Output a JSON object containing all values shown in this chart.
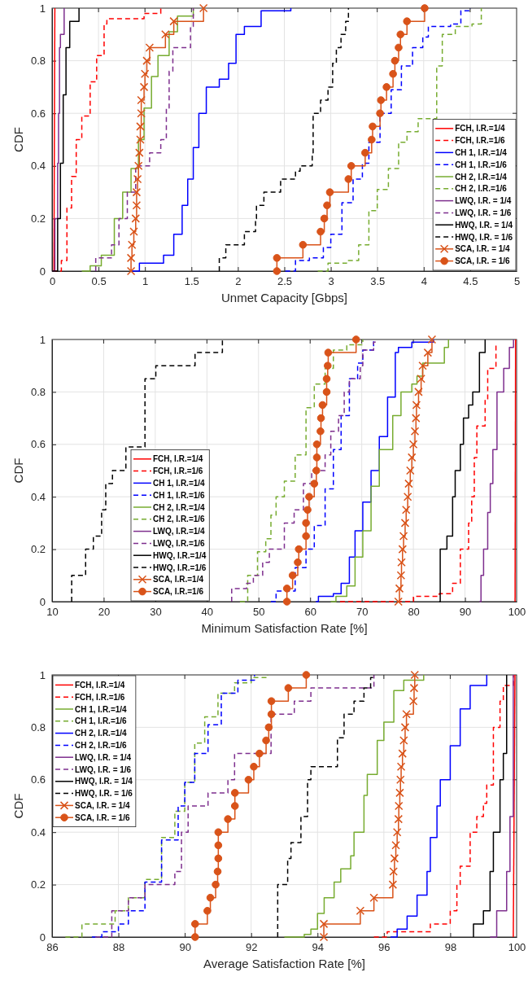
{
  "chart_data": [
    {
      "type": "step",
      "xlabel": "Unmet Capacity [Gbps]",
      "ylabel": "CDF",
      "xlim": [
        0,
        5
      ],
      "ylim": [
        0,
        1
      ],
      "xticks": [
        0,
        0.5,
        1,
        1.5,
        2,
        2.5,
        3,
        3.5,
        4,
        4.5,
        5
      ],
      "yticks": [
        0,
        0.2,
        0.4,
        0.6,
        0.8,
        1
      ],
      "grid": true,
      "legend": "bottom right",
      "series": [
        {
          "name": "FCH, I.R.=1/4",
          "type": "line",
          "color": "#ff0000",
          "line_style": "solid",
          "x": [
            0.02,
            0.03
          ],
          "values": [
            0,
            1
          ]
        },
        {
          "name": "FCH, I.R.=1/6",
          "color": "#ff0000",
          "line_style": "dashed",
          "x": [
            0,
            0.1,
            0.16,
            0.21,
            0.26,
            0.32,
            0.41,
            0.48,
            0.56,
            0.59,
            0.99,
            1.17
          ],
          "values": [
            0,
            0.04,
            0.24,
            0.36,
            0.5,
            0.59,
            0.72,
            0.82,
            0.94,
            0.96,
            0.98,
            1
          ]
        },
        {
          "name": "CH 1, I.R.=1/4",
          "color": "#0000ff",
          "line_style": "solid",
          "x": [
            0.85,
            0.94,
            1.2,
            1.31,
            1.4,
            1.46,
            1.52,
            1.58,
            1.66,
            1.8,
            1.9,
            1.98,
            2.07,
            2.25,
            2.57
          ],
          "values": [
            0,
            0.03,
            0.06,
            0.14,
            0.25,
            0.35,
            0.47,
            0.6,
            0.7,
            0.73,
            0.79,
            0.9,
            0.93,
            0.99,
            1
          ]
        },
        {
          "name": "CH 1, I.R.=1/6",
          "color": "#0000ff",
          "line_style": "dashed",
          "x": [
            2.51,
            2.62,
            2.77,
            2.92,
            3.0,
            3.12,
            3.24,
            3.34,
            3.41,
            3.53,
            3.65,
            3.76,
            3.88,
            3.99,
            4.05,
            4.29,
            4.4,
            4.5
          ],
          "values": [
            0,
            0.04,
            0.05,
            0.09,
            0.14,
            0.26,
            0.35,
            0.41,
            0.49,
            0.6,
            0.69,
            0.78,
            0.85,
            0.89,
            0.93,
            0.94,
            0.99,
            1
          ]
        },
        {
          "name": "CH 2, I.R.=1/4",
          "color": "#77ac30",
          "line_style": "solid",
          "x": [
            0.32,
            0.41,
            0.53,
            0.67,
            0.76,
            0.85,
            0.93,
            0.99,
            1.07,
            1.14,
            1.26,
            1.35,
            1.52
          ],
          "values": [
            0,
            0.02,
            0.06,
            0.2,
            0.3,
            0.39,
            0.5,
            0.62,
            0.74,
            0.82,
            0.91,
            0.97,
            1
          ]
        },
        {
          "name": "CH 2, I.R.=1/6",
          "color": "#77ac30",
          "line_style": "dashed",
          "x": [
            2.86,
            2.97,
            3.17,
            3.3,
            3.41,
            3.5,
            3.62,
            3.73,
            3.82,
            3.94,
            4.14,
            4.2,
            4.34,
            4.52,
            4.62
          ],
          "values": [
            0,
            0.03,
            0.04,
            0.1,
            0.23,
            0.31,
            0.39,
            0.49,
            0.53,
            0.58,
            0.78,
            0.9,
            0.93,
            0.94,
            1
          ]
        },
        {
          "name": "LWQ, I.R. = 1/4",
          "color": "#7e2f8e",
          "line_style": "solid",
          "x": [
            0,
            0.03,
            0.06,
            0.07,
            0.08,
            0.09,
            0.13
          ],
          "values": [
            0,
            0.2,
            0.41,
            0.6,
            0.85,
            0.9,
            1
          ]
        },
        {
          "name": "LWQ, I.R. = 1/6",
          "color": "#7e2f8e",
          "line_style": "dashed",
          "x": [
            0.47,
            0.47,
            0.64,
            0.72,
            0.81,
            0.9,
            1.05,
            1.17,
            1.23,
            1.26,
            1.3,
            1.49,
            1.52
          ],
          "values": [
            0,
            0.05,
            0.1,
            0.2,
            0.3,
            0.4,
            0.45,
            0.5,
            0.62,
            0.76,
            0.85,
            0.93,
            1
          ]
        },
        {
          "name": "HWQ, I.R. = 1/4",
          "color": "#000000",
          "line_style": "solid",
          "x": [
            0,
            0.06,
            0.09,
            0.12,
            0.15,
            0.19,
            0.29
          ],
          "values": [
            0,
            0.2,
            0.41,
            0.67,
            0.85,
            0.95,
            1
          ]
        },
        {
          "name": "HWQ, I.R. = 1/6",
          "color": "#000000",
          "line_style": "dashed",
          "x": [
            1.8,
            1.8,
            1.87,
            2.07,
            2.19,
            2.2,
            2.28,
            2.46,
            2.62,
            2.67,
            2.8,
            2.81,
            2.89,
            2.97,
            3.02,
            3.06,
            3.11,
            3.16,
            3.19
          ],
          "values": [
            0,
            0.05,
            0.1,
            0.15,
            0.2,
            0.25,
            0.3,
            0.35,
            0.38,
            0.4,
            0.45,
            0.6,
            0.65,
            0.7,
            0.79,
            0.85,
            0.9,
            0.95,
            1
          ]
        },
        {
          "name": "SCA, I.R. = 1/4",
          "color": "#d95319",
          "line_style": "solid",
          "marker": "cross",
          "x": [
            0.85,
            0.85,
            0.86,
            0.88,
            0.9,
            0.91,
            0.91,
            0.92,
            0.93,
            0.94,
            0.95,
            0.95,
            0.96,
            0.96,
            0.99,
            1.0,
            1.02,
            1.05,
            1.22,
            1.31,
            1.63
          ],
          "values": [
            0,
            0.05,
            0.1,
            0.15,
            0.2,
            0.25,
            0.3,
            0.35,
            0.4,
            0.45,
            0.5,
            0.55,
            0.6,
            0.65,
            0.7,
            0.75,
            0.8,
            0.85,
            0.9,
            0.95,
            1
          ]
        },
        {
          "name": "SCA, I.R. = 1/6",
          "color": "#d95319",
          "line_style": "solid",
          "marker": "circle",
          "x": [
            2.42,
            2.42,
            2.7,
            2.89,
            2.93,
            2.96,
            2.99,
            3.19,
            3.22,
            3.37,
            3.44,
            3.45,
            3.53,
            3.54,
            3.6,
            3.67,
            3.69,
            3.73,
            3.75,
            3.82,
            4.01
          ],
          "values": [
            0,
            0.05,
            0.1,
            0.15,
            0.2,
            0.25,
            0.3,
            0.35,
            0.4,
            0.45,
            0.5,
            0.55,
            0.6,
            0.65,
            0.7,
            0.75,
            0.8,
            0.85,
            0.9,
            0.95,
            1
          ]
        }
      ]
    },
    {
      "type": "step",
      "xlabel": "Minimum Satisfaction Rate [%]",
      "ylabel": "CDF",
      "xlim": [
        10,
        100
      ],
      "ylim": [
        0,
        1
      ],
      "xticks": [
        10,
        20,
        30,
        40,
        50,
        60,
        70,
        80,
        90,
        100
      ],
      "yticks": [
        0,
        0.2,
        0.4,
        0.6,
        0.8,
        1
      ],
      "grid": true,
      "legend": "bottom left",
      "series": [
        {
          "name": "FCH, I.R.=1/4",
          "type": "line",
          "color": "#ff0000",
          "line_style": "solid",
          "x": [
            99.7,
            99.8
          ],
          "values": [
            0,
            1
          ]
        },
        {
          "name": "FCH, I.R.=1/6",
          "color": "#ff0000",
          "line_style": "dashed",
          "x": [
            65.8,
            80,
            85,
            87.6,
            89.1,
            90.7,
            91.3,
            91.8,
            92.3,
            93.9,
            94.4,
            96.0
          ],
          "values": [
            0,
            0.02,
            0.03,
            0.07,
            0.2,
            0.3,
            0.4,
            0.55,
            0.67,
            0.77,
            0.89,
            0.98
          ]
        },
        {
          "name": "CH 1, I.R.=1/4",
          "color": "#0000ff",
          "line_style": "solid",
          "x": [
            61.1,
            61.6,
            64.5,
            66.0,
            67.6,
            68.7,
            70.2,
            71.8,
            73.4,
            75.0,
            76.5,
            77.1,
            79.7,
            83.9
          ],
          "values": [
            0,
            0.02,
            0.03,
            0.07,
            0.17,
            0.27,
            0.38,
            0.5,
            0.63,
            0.78,
            0.95,
            0.97,
            0.99,
            1
          ]
        },
        {
          "name": "CH 1, I.R.=1/6",
          "color": "#0000ff",
          "line_style": "dashed",
          "x": [
            52.4,
            53.4,
            57.1,
            59.2,
            60.8,
            62.9,
            64.5,
            66.0,
            67.6,
            69.2,
            70.2,
            72.3
          ],
          "values": [
            0,
            0.04,
            0.13,
            0.2,
            0.29,
            0.43,
            0.58,
            0.71,
            0.85,
            0.91,
            0.96,
            1
          ]
        },
        {
          "name": "CH 2, I.R.=1/4",
          "color": "#77ac30",
          "line_style": "solid",
          "x": [
            64.0,
            65.0,
            67.1,
            68.7,
            70.2,
            71.8,
            73.4,
            76.0,
            77.6,
            79.7,
            80.7,
            81.8,
            86.0,
            86.8
          ],
          "values": [
            0,
            0.02,
            0.06,
            0.17,
            0.27,
            0.44,
            0.58,
            0.71,
            0.8,
            0.83,
            0.86,
            0.91,
            0.97,
            1
          ]
        },
        {
          "name": "CH 2, I.R.=1/6",
          "color": "#77ac30",
          "line_style": "dashed",
          "x": [
            46.4,
            47.9,
            49.8,
            51.4,
            52.4,
            53.4,
            55.0,
            57.1,
            59.2,
            60.8,
            62.9,
            64.5,
            67.1,
            70.2
          ],
          "values": [
            0,
            0.1,
            0.19,
            0.24,
            0.33,
            0.4,
            0.46,
            0.56,
            0.74,
            0.83,
            0.89,
            0.96,
            0.98,
            1
          ]
        },
        {
          "name": "LWQ, I.R.=1/4",
          "color": "#7e2f8e",
          "line_style": "solid",
          "x": [
            92.8,
            93.1,
            93.6,
            94.4,
            94.9,
            95.4,
            96.2,
            97.5,
            98.6,
            99.4
          ],
          "values": [
            0,
            0.1,
            0.2,
            0.34,
            0.45,
            0.58,
            0.8,
            0.89,
            0.97,
            1
          ]
        },
        {
          "name": "LWQ, I.R.=1/6",
          "color": "#7e2f8e",
          "line_style": "dashed",
          "x": [
            44.8,
            44.8,
            47.7,
            49.0,
            50.8,
            52.1,
            55.0,
            56.9,
            58.7,
            60.3,
            62.9,
            64.0,
            65.5,
            66.6,
            67.6,
            69.7,
            70.2,
            72.3,
            72.6
          ],
          "values": [
            0,
            0.05,
            0.07,
            0.1,
            0.15,
            0.2,
            0.3,
            0.35,
            0.45,
            0.5,
            0.56,
            0.65,
            0.71,
            0.8,
            0.85,
            0.9,
            0.96,
            0.99,
            1
          ]
        },
        {
          "name": "HWQ, I.R.=1/4",
          "color": "#000000",
          "line_style": "solid",
          "x": [
            85.0,
            85.2,
            86.5,
            87.6,
            88.1,
            89.1,
            89.7,
            90.7,
            91.5,
            92.8,
            93.9
          ],
          "values": [
            0,
            0.2,
            0.25,
            0.4,
            0.5,
            0.6,
            0.7,
            0.75,
            0.8,
            0.95,
            1
          ]
        },
        {
          "name": "HWQ, I.R.=1/6",
          "color": "#000000",
          "line_style": "dashed",
          "x": [
            13.8,
            13.8,
            16.5,
            18.0,
            19.6,
            20.4,
            21.7,
            24.3,
            28.0,
            30.1,
            37.7,
            43.0
          ],
          "values": [
            0,
            0.1,
            0.2,
            0.25,
            0.35,
            0.45,
            0.5,
            0.59,
            0.85,
            0.9,
            0.95,
            1
          ]
        },
        {
          "name": "SCA, I.R.=1/4",
          "color": "#d95319",
          "line_style": "solid",
          "marker": "cross",
          "x": [
            77.1,
            77.3,
            77.6,
            77.7,
            77.9,
            78.1,
            78.4,
            78.6,
            78.9,
            79.1,
            79.4,
            79.7,
            80.0,
            80.3,
            80.5,
            80.6,
            81.0,
            81.5,
            81.8,
            82.8,
            83.6
          ],
          "values": [
            0,
            0.05,
            0.1,
            0.15,
            0.2,
            0.25,
            0.3,
            0.35,
            0.4,
            0.45,
            0.5,
            0.55,
            0.6,
            0.65,
            0.7,
            0.75,
            0.8,
            0.85,
            0.9,
            0.95,
            1
          ]
        },
        {
          "name": "SCA, I.R.=1/6",
          "color": "#d95319",
          "line_style": "solid",
          "marker": "circle",
          "x": [
            55.5,
            55.5,
            56.6,
            57.6,
            57.8,
            59.2,
            59.2,
            59.5,
            59.8,
            60.8,
            61.2,
            61.3,
            61.3,
            62.0,
            62.1,
            62.4,
            63.2,
            63.2,
            63.4,
            63.5,
            68.9
          ],
          "values": [
            0,
            0.05,
            0.1,
            0.15,
            0.2,
            0.25,
            0.3,
            0.35,
            0.4,
            0.45,
            0.5,
            0.55,
            0.6,
            0.65,
            0.7,
            0.75,
            0.8,
            0.85,
            0.9,
            0.95,
            1
          ]
        }
      ]
    },
    {
      "type": "step",
      "xlabel": "Average Satisfaction Rate [%]",
      "ylabel": "CDF",
      "xlim": [
        86,
        100
      ],
      "ylim": [
        0,
        1
      ],
      "xticks": [
        86,
        88,
        90,
        92,
        94,
        96,
        98,
        100
      ],
      "yticks": [
        0,
        0.2,
        0.4,
        0.6,
        0.8,
        1
      ],
      "grid": true,
      "legend": "top left",
      "series": [
        {
          "name": "FCH, I.R.=1/4",
          "type": "line",
          "color": "#ff0000",
          "line_style": "solid",
          "x": [
            99.9,
            99.95
          ],
          "values": [
            0,
            1
          ]
        },
        {
          "name": "FCH, I.R.=1/6",
          "color": "#ff0000",
          "line_style": "dashed",
          "x": [
            95.7,
            96.1,
            97.4,
            98.0,
            98.2,
            98.3,
            98.6,
            98.8,
            99.0,
            99.1,
            99.3,
            99.5,
            99.6,
            99.9
          ],
          "values": [
            0,
            0.02,
            0.05,
            0.1,
            0.2,
            0.27,
            0.4,
            0.46,
            0.51,
            0.58,
            0.8,
            0.9,
            0.96,
            1
          ]
        },
        {
          "name": "CH 1, I.R.=1/4",
          "color": "#77ac30",
          "line_style": "solid",
          "x": [
            93.0,
            93.6,
            93.8,
            94.0,
            94.2,
            94.5,
            94.7,
            95.0,
            95.1,
            95.4,
            95.5,
            95.8,
            96.0,
            96.3,
            96.6,
            97.2
          ],
          "values": [
            0,
            0.01,
            0.03,
            0.09,
            0.15,
            0.21,
            0.26,
            0.31,
            0.4,
            0.54,
            0.62,
            0.75,
            0.82,
            0.94,
            0.98,
            1
          ]
        },
        {
          "name": "CH 1, I.R.=1/6",
          "color": "#77ac30",
          "line_style": "dashed",
          "x": [
            86.4,
            86.9,
            87.9,
            88.3,
            88.8,
            89.3,
            89.7,
            90.0,
            90.3,
            90.6,
            91.0,
            91.5,
            92.0,
            92.5
          ],
          "values": [
            0,
            0.05,
            0.1,
            0.15,
            0.22,
            0.38,
            0.48,
            0.59,
            0.74,
            0.84,
            0.93,
            0.97,
            0.99,
            1
          ]
        },
        {
          "name": "CH 2, I.R.=1/4",
          "color": "#0000ff",
          "line_style": "solid",
          "x": [
            96.2,
            96.4,
            96.7,
            97.0,
            97.3,
            97.4,
            97.6,
            97.7,
            98.0,
            98.3,
            98.6,
            99.1
          ],
          "values": [
            0,
            0.03,
            0.08,
            0.16,
            0.25,
            0.38,
            0.5,
            0.6,
            0.73,
            0.87,
            0.96,
            1
          ]
        },
        {
          "name": "CH 2, I.R.=1/6",
          "color": "#0000ff",
          "line_style": "dashed",
          "x": [
            87.2,
            87.5,
            88.0,
            88.3,
            88.8,
            89.3,
            89.8,
            90.0,
            90.3,
            90.7,
            91.1,
            91.6,
            92.1
          ],
          "values": [
            0,
            0.02,
            0.05,
            0.1,
            0.21,
            0.37,
            0.5,
            0.59,
            0.7,
            0.81,
            0.93,
            0.98,
            1
          ]
        },
        {
          "name": "LWQ, I.R. = 1/4",
          "color": "#7e2f8e",
          "line_style": "solid",
          "x": [
            99.2,
            99.4,
            99.7,
            99.8,
            99.9
          ],
          "values": [
            0,
            0.1,
            0.25,
            0.46,
            1
          ]
        },
        {
          "name": "LWQ, I.R. = 1/6",
          "color": "#7e2f8e",
          "line_style": "dashed",
          "x": [
            87.3,
            87.8,
            88.3,
            88.8,
            89.7,
            89.9,
            90.1,
            90.7,
            91.3,
            91.5,
            92.6,
            93.3,
            93.8,
            95.7
          ],
          "values": [
            0,
            0.1,
            0.15,
            0.2,
            0.25,
            0.4,
            0.5,
            0.55,
            0.6,
            0.7,
            0.85,
            0.9,
            0.95,
            1
          ]
        },
        {
          "name": "HWQ, I.R. = 1/4",
          "color": "#000000",
          "line_style": "solid",
          "x": [
            98.7,
            98.7,
            99.0,
            99.2,
            99.3,
            99.5,
            99.6,
            99.7
          ],
          "values": [
            0,
            0.05,
            0.1,
            0.25,
            0.4,
            0.6,
            0.7,
            1
          ]
        },
        {
          "name": "HWQ, I.R. = 1/6",
          "color": "#000000",
          "line_style": "dashed",
          "x": [
            92.8,
            92.8,
            93.1,
            93.2,
            93.5,
            93.7,
            93.8,
            94.6,
            94.8,
            95.1,
            95.4,
            95.6,
            95.7
          ],
          "values": [
            0,
            0.2,
            0.3,
            0.36,
            0.46,
            0.6,
            0.65,
            0.76,
            0.85,
            0.9,
            0.95,
            0.99,
            1
          ]
        },
        {
          "name": "SCA, I.R. = 1/4",
          "color": "#d95319",
          "line_style": "solid",
          "marker": "cross",
          "x": [
            94.19,
            94.19,
            95.29,
            95.7,
            96.27,
            96.29,
            96.32,
            96.36,
            96.4,
            96.44,
            96.45,
            96.48,
            96.5,
            96.52,
            96.56,
            96.6,
            96.64,
            96.68,
            96.89,
            96.91,
            96.93
          ],
          "values": [
            0,
            0.05,
            0.1,
            0.15,
            0.2,
            0.25,
            0.3,
            0.35,
            0.4,
            0.45,
            0.5,
            0.55,
            0.6,
            0.65,
            0.7,
            0.75,
            0.8,
            0.85,
            0.9,
            0.95,
            1
          ]
        },
        {
          "name": "SCA, I.R. = 1/6",
          "color": "#d95319",
          "line_style": "solid",
          "marker": "circle",
          "x": [
            90.31,
            90.31,
            90.68,
            90.77,
            90.93,
            90.99,
            91.01,
            91.01,
            91.01,
            91.3,
            91.51,
            91.51,
            91.92,
            92.08,
            92.25,
            92.45,
            92.53,
            92.61,
            92.61,
            93.12,
            93.66
          ],
          "values": [
            0,
            0.05,
            0.1,
            0.15,
            0.2,
            0.25,
            0.3,
            0.35,
            0.4,
            0.45,
            0.5,
            0.55,
            0.6,
            0.65,
            0.7,
            0.75,
            0.8,
            0.85,
            0.9,
            0.95,
            1
          ]
        }
      ]
    }
  ]
}
